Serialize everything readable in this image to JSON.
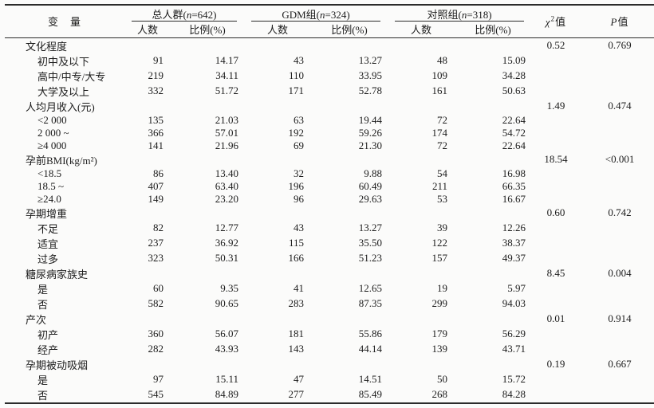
{
  "table": {
    "header": {
      "variable_label": "变　量",
      "groups": [
        {
          "pre": "总人群(",
          "n": "n",
          "post": "=642)"
        },
        {
          "pre": "GDM组(",
          "n": "n",
          "post": "=324)"
        },
        {
          "pre": "对照组(",
          "n": "n",
          "post": "=318)"
        }
      ],
      "sub_count": "人数",
      "sub_percent": "比例(%)",
      "chi": {
        "sym": "χ",
        "sup": "2",
        "suffix": "值"
      },
      "p": {
        "sym": "P",
        "suffix": "值"
      }
    },
    "rows": [
      {
        "type": "section",
        "label": "文化程度",
        "chi2": "0.52",
        "p": "0.769"
      },
      {
        "type": "item",
        "label": "初中及以下",
        "cells": [
          "91",
          "14.17",
          "43",
          "13.27",
          "48",
          "15.09"
        ]
      },
      {
        "type": "item",
        "label": "高中/中专/大专",
        "cells": [
          "219",
          "34.11",
          "110",
          "33.95",
          "109",
          "34.28"
        ]
      },
      {
        "type": "item",
        "label": "大学及以上",
        "cells": [
          "332",
          "51.72",
          "171",
          "52.78",
          "161",
          "50.63"
        ]
      },
      {
        "type": "section",
        "label": "人均月收入(元)",
        "chi2": "1.49",
        "p": "0.474"
      },
      {
        "type": "item",
        "label": "<2 000",
        "cells": [
          "135",
          "21.03",
          "63",
          "19.44",
          "72",
          "22.64"
        ]
      },
      {
        "type": "item",
        "label": "2 000 ~",
        "cells": [
          "366",
          "57.01",
          "192",
          "59.26",
          "174",
          "54.72"
        ]
      },
      {
        "type": "item",
        "label": "≥4 000",
        "cells": [
          "141",
          "21.96",
          "69",
          "21.30",
          "72",
          "22.64"
        ]
      },
      {
        "type": "section",
        "label": "孕前BMI(kg/m²)",
        "chi2": "18.54",
        "p": "<0.001"
      },
      {
        "type": "item",
        "label": "<18.5",
        "cells": [
          "86",
          "13.40",
          "32",
          "9.88",
          "54",
          "16.98"
        ]
      },
      {
        "type": "item",
        "label": "18.5 ~",
        "cells": [
          "407",
          "63.40",
          "196",
          "60.49",
          "211",
          "66.35"
        ]
      },
      {
        "type": "item",
        "label": "≥24.0",
        "cells": [
          "149",
          "23.20",
          "96",
          "29.63",
          "53",
          "16.67"
        ]
      },
      {
        "type": "section",
        "label": "孕期增重",
        "chi2": "0.60",
        "p": "0.742"
      },
      {
        "type": "item",
        "label": "不足",
        "cells": [
          "82",
          "12.77",
          "43",
          "13.27",
          "39",
          "12.26"
        ]
      },
      {
        "type": "item",
        "label": "适宜",
        "cells": [
          "237",
          "36.92",
          "115",
          "35.50",
          "122",
          "38.37"
        ]
      },
      {
        "type": "item",
        "label": "过多",
        "cells": [
          "323",
          "50.31",
          "166",
          "51.23",
          "157",
          "49.37"
        ]
      },
      {
        "type": "section",
        "label": "糖尿病家族史",
        "chi2": "8.45",
        "p": "0.004"
      },
      {
        "type": "item",
        "label": "是",
        "cells": [
          "60",
          "9.35",
          "41",
          "12.65",
          "19",
          "5.97"
        ]
      },
      {
        "type": "item",
        "label": "否",
        "cells": [
          "582",
          "90.65",
          "283",
          "87.35",
          "299",
          "94.03"
        ]
      },
      {
        "type": "section",
        "label": "产次",
        "chi2": "0.01",
        "p": "0.914"
      },
      {
        "type": "item",
        "label": "初产",
        "cells": [
          "360",
          "56.07",
          "181",
          "55.86",
          "179",
          "56.29"
        ]
      },
      {
        "type": "item",
        "label": "经产",
        "cells": [
          "282",
          "43.93",
          "143",
          "44.14",
          "139",
          "43.71"
        ]
      },
      {
        "type": "section",
        "label": "孕期被动吸烟",
        "chi2": "0.19",
        "p": "0.667"
      },
      {
        "type": "item",
        "label": "是",
        "cells": [
          "97",
          "15.11",
          "47",
          "14.51",
          "50",
          "15.72"
        ]
      },
      {
        "type": "item",
        "label": "否",
        "cells": [
          "545",
          "84.89",
          "277",
          "85.49",
          "268",
          "84.28"
        ]
      }
    ]
  }
}
